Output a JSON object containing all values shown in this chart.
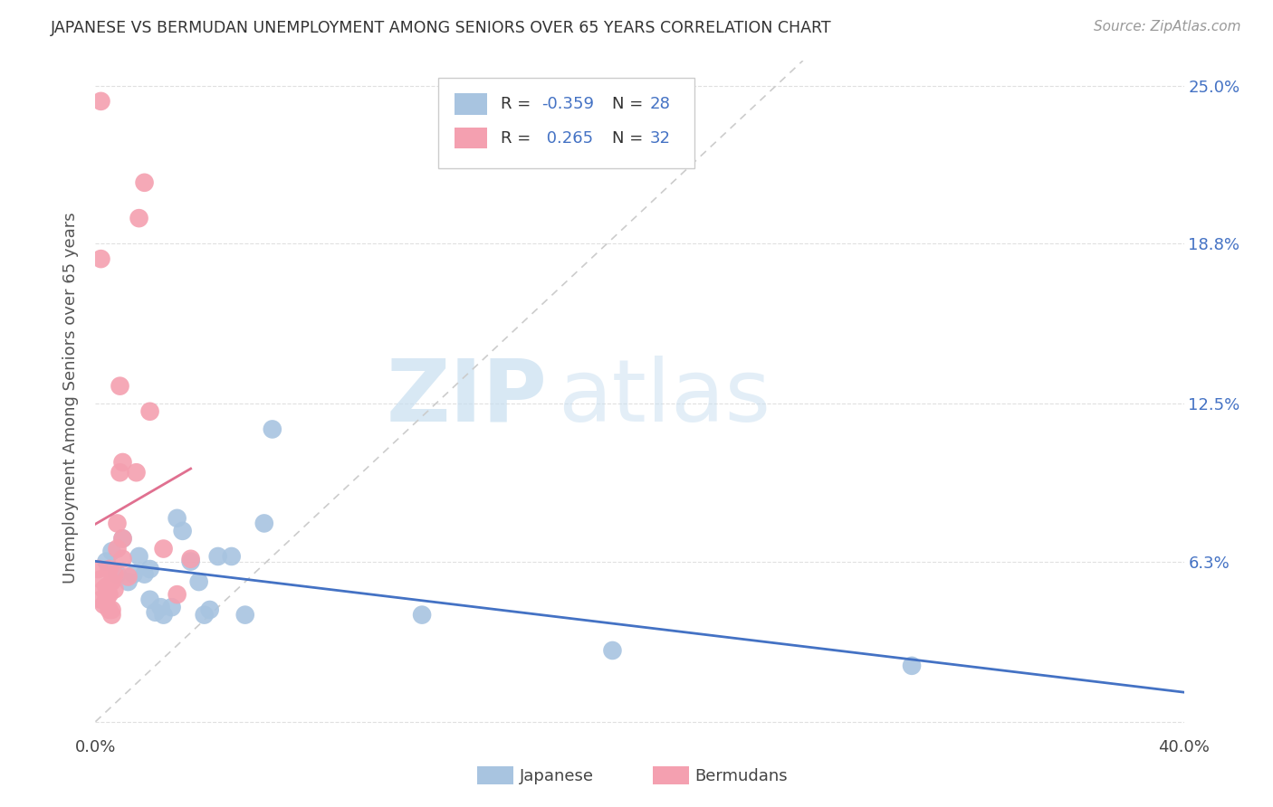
{
  "title": "JAPANESE VS BERMUDAN UNEMPLOYMENT AMONG SENIORS OVER 65 YEARS CORRELATION CHART",
  "source": "Source: ZipAtlas.com",
  "ylabel": "Unemployment Among Seniors over 65 years",
  "y_ticks": [
    0.0,
    0.063,
    0.125,
    0.188,
    0.25
  ],
  "y_tick_labels_right": [
    "",
    "6.3%",
    "12.5%",
    "18.8%",
    "25.0%"
  ],
  "xlim": [
    0.0,
    0.4
  ],
  "ylim": [
    -0.005,
    0.26
  ],
  "legend_label1": "Japanese",
  "legend_label2": "Bermudans",
  "R1_text": "R = ",
  "R1_val": "-0.359",
  "N1_text": "N = ",
  "N1_val": "28",
  "R2_text": "R = ",
  "R2_val": " 0.265",
  "N2_text": "N = ",
  "N2_val": "32",
  "japanese_x": [
    0.004,
    0.006,
    0.008,
    0.01,
    0.012,
    0.014,
    0.016,
    0.018,
    0.02,
    0.02,
    0.022,
    0.024,
    0.025,
    0.028,
    0.03,
    0.032,
    0.035,
    0.038,
    0.04,
    0.042,
    0.045,
    0.05,
    0.055,
    0.062,
    0.065,
    0.12,
    0.19,
    0.3
  ],
  "japanese_y": [
    0.063,
    0.067,
    0.058,
    0.072,
    0.055,
    0.058,
    0.065,
    0.058,
    0.06,
    0.048,
    0.043,
    0.045,
    0.042,
    0.045,
    0.08,
    0.075,
    0.063,
    0.055,
    0.042,
    0.044,
    0.065,
    0.065,
    0.042,
    0.078,
    0.115,
    0.042,
    0.028,
    0.022
  ],
  "bermudan_x": [
    0.001,
    0.002,
    0.002,
    0.003,
    0.003,
    0.004,
    0.004,
    0.005,
    0.005,
    0.005,
    0.006,
    0.006,
    0.006,
    0.007,
    0.007,
    0.008,
    0.008,
    0.009,
    0.009,
    0.01,
    0.01,
    0.01,
    0.012,
    0.015,
    0.016,
    0.018,
    0.02,
    0.025,
    0.03,
    0.035,
    0.002,
    0.002
  ],
  "bermudan_y": [
    0.06,
    0.056,
    0.048,
    0.052,
    0.046,
    0.048,
    0.053,
    0.06,
    0.044,
    0.05,
    0.055,
    0.042,
    0.044,
    0.052,
    0.058,
    0.068,
    0.078,
    0.132,
    0.098,
    0.072,
    0.064,
    0.102,
    0.057,
    0.098,
    0.198,
    0.212,
    0.122,
    0.068,
    0.05,
    0.064,
    0.244,
    0.182
  ],
  "japanese_color": "#a8c4e0",
  "bermudan_color": "#f4a0b0",
  "japanese_line_color": "#4472c4",
  "bermudan_line_color": "#e07090",
  "background_color": "#ffffff",
  "grid_color": "#e0e0e0",
  "text_color": "#4472c4",
  "label_color": "#555555"
}
